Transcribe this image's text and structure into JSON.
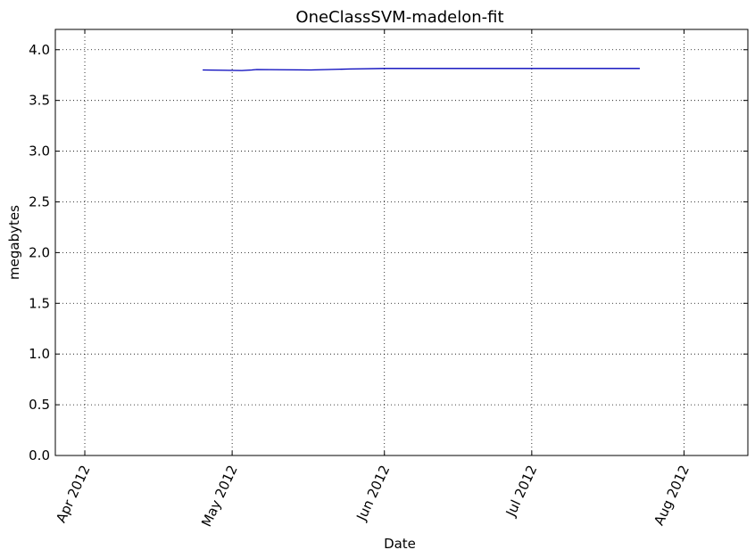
{
  "chart_data": {
    "type": "line",
    "title": "OneClassSVM-madelon-fit",
    "xlabel": "Date",
    "ylabel": "megabytes",
    "xlim": [
      "2012-03-26",
      "2012-08-14"
    ],
    "ylim": [
      0,
      4.2
    ],
    "grid": true,
    "x_ticks": [
      {
        "date": "2012-04-01",
        "label": "Apr 2012"
      },
      {
        "date": "2012-05-01",
        "label": "May 2012"
      },
      {
        "date": "2012-06-01",
        "label": "Jun 2012"
      },
      {
        "date": "2012-07-01",
        "label": "Jul 2012"
      },
      {
        "date": "2012-08-01",
        "label": "Aug 2012"
      }
    ],
    "y_ticks": [
      {
        "value": 0.0,
        "label": "0.0"
      },
      {
        "value": 0.5,
        "label": "0.5"
      },
      {
        "value": 1.0,
        "label": "1.0"
      },
      {
        "value": 1.5,
        "label": "1.5"
      },
      {
        "value": 2.0,
        "label": "2.0"
      },
      {
        "value": 2.5,
        "label": "2.5"
      },
      {
        "value": 3.0,
        "label": "3.0"
      },
      {
        "value": 3.5,
        "label": "3.5"
      },
      {
        "value": 4.0,
        "label": "4.0"
      }
    ],
    "series": [
      {
        "color": "#0000bb",
        "x": [
          "2012-04-25",
          "2012-05-03",
          "2012-05-05",
          "2012-05-06",
          "2012-05-17",
          "2012-05-25",
          "2012-06-01",
          "2012-07-23"
        ],
        "y": [
          3.8,
          3.795,
          3.8,
          3.805,
          3.8,
          3.81,
          3.815,
          3.815
        ]
      }
    ]
  }
}
